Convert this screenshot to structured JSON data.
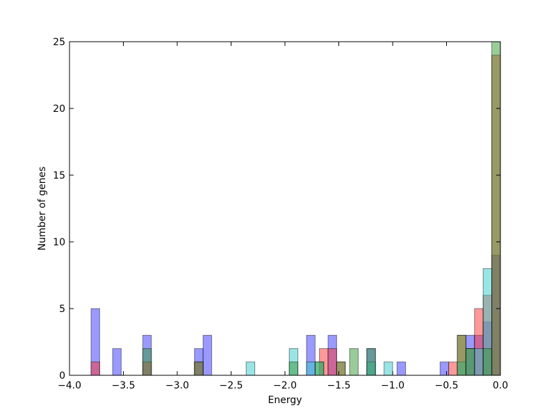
{
  "chart_data": {
    "type": "bar",
    "title": "",
    "xlabel": "Energy",
    "ylabel": "Number of genes",
    "xlim": [
      -4.0,
      0.0
    ],
    "ylim": [
      0,
      25
    ],
    "x_ticks": [
      "−4.0",
      "−3.5",
      "−3.0",
      "−2.5",
      "−2.0",
      "−1.5",
      "−1.0",
      "−0.5",
      "0.0"
    ],
    "x_tick_values": [
      -4.0,
      -3.5,
      -3.0,
      -2.5,
      -2.0,
      -1.5,
      -1.0,
      -0.5,
      0.0
    ],
    "y_ticks": [
      "0",
      "5",
      "10",
      "15",
      "20",
      "25"
    ],
    "y_tick_values": [
      0,
      5,
      10,
      15,
      20,
      25
    ],
    "bin_width": 0.08,
    "grid": false,
    "series": [
      {
        "color": "#3333ff",
        "bins": [
          {
            "x": -3.76,
            "y": 5
          },
          {
            "x": -3.56,
            "y": 2
          },
          {
            "x": -3.28,
            "y": 3
          },
          {
            "x": -2.8,
            "y": 2
          },
          {
            "x": -2.72,
            "y": 3
          },
          {
            "x": -1.76,
            "y": 3
          },
          {
            "x": -1.56,
            "y": 3
          },
          {
            "x": -1.2,
            "y": 2
          },
          {
            "x": -0.92,
            "y": 1
          },
          {
            "x": -0.52,
            "y": 1
          },
          {
            "x": -0.28,
            "y": 3
          },
          {
            "x": -0.2,
            "y": 3
          },
          {
            "x": -0.12,
            "y": 4
          },
          {
            "x": -0.04,
            "y": 9
          }
        ]
      },
      {
        "color": "#ff3333",
        "bins": [
          {
            "x": -3.76,
            "y": 1
          },
          {
            "x": -3.28,
            "y": 1
          },
          {
            "x": -2.8,
            "y": 1
          },
          {
            "x": -1.64,
            "y": 2
          },
          {
            "x": -1.56,
            "y": 2
          },
          {
            "x": -1.48,
            "y": 1
          },
          {
            "x": -0.44,
            "y": 1
          },
          {
            "x": -0.36,
            "y": 3
          },
          {
            "x": -0.28,
            "y": 2
          },
          {
            "x": -0.2,
            "y": 5
          },
          {
            "x": -0.12,
            "y": 6
          },
          {
            "x": -0.04,
            "y": 24
          }
        ]
      },
      {
        "color": "#33cccc",
        "bins": [
          {
            "x": -2.32,
            "y": 1
          },
          {
            "x": -1.92,
            "y": 2
          },
          {
            "x": -1.76,
            "y": 1
          },
          {
            "x": -1.68,
            "y": 1
          },
          {
            "x": -1.2,
            "y": 1
          },
          {
            "x": -1.04,
            "y": 1
          },
          {
            "x": -0.36,
            "y": 1
          },
          {
            "x": -0.28,
            "y": 2
          },
          {
            "x": -0.2,
            "y": 2
          },
          {
            "x": -0.12,
            "y": 8
          }
        ]
      },
      {
        "color": "#339933",
        "bins": [
          {
            "x": -3.28,
            "y": 2
          },
          {
            "x": -2.8,
            "y": 1
          },
          {
            "x": -1.92,
            "y": 1
          },
          {
            "x": -1.68,
            "y": 1
          },
          {
            "x": -1.48,
            "y": 1
          },
          {
            "x": -1.36,
            "y": 2
          },
          {
            "x": -1.2,
            "y": 2
          },
          {
            "x": -0.36,
            "y": 3
          },
          {
            "x": -0.28,
            "y": 2
          },
          {
            "x": -0.12,
            "y": 2
          },
          {
            "x": -0.04,
            "y": 25
          }
        ]
      }
    ]
  }
}
